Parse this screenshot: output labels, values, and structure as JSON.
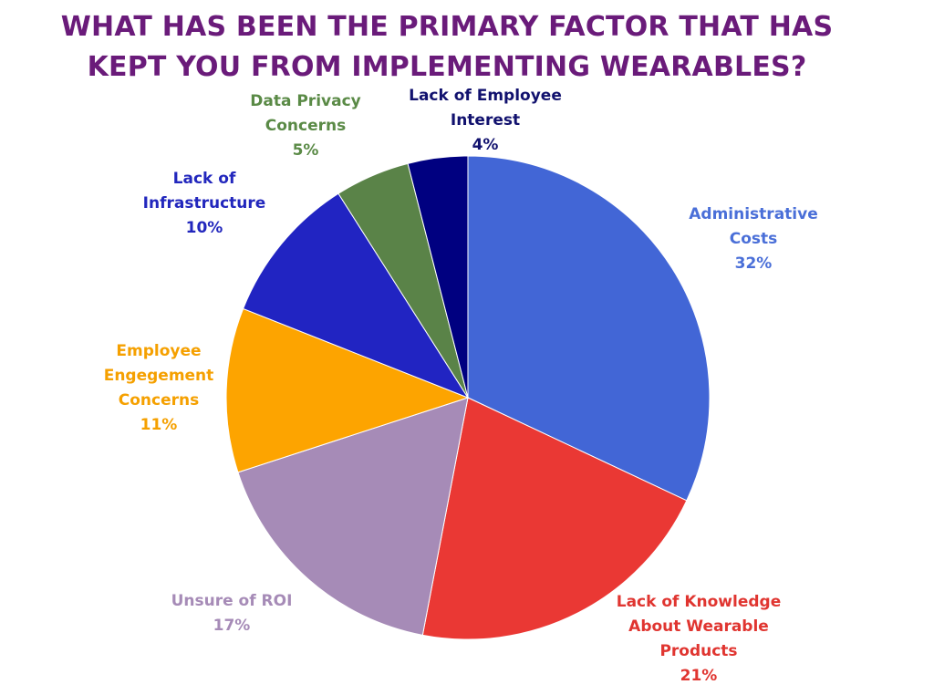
{
  "title": {
    "line1": "WHAT HAS BEEN THE PRIMARY FACTOR THAT HAS",
    "line2": "KEPT YOU FROM IMPLEMENTING WEARABLES?"
  },
  "chart_data": {
    "type": "pie",
    "title": "WHAT HAS BEEN THE PRIMARY FACTOR THAT HAS KEPT YOU FROM IMPLEMENTING WEARABLES?",
    "slices": [
      {
        "label": "Administrative Costs",
        "label_lines": [
          "Administrative",
          "Costs"
        ],
        "value": 32,
        "value_label": "32%",
        "color": "#4266d6",
        "label_color": "#4a6fd8"
      },
      {
        "label": "Lack of Knowledge About Wearable Products",
        "label_lines": [
          "Lack of Knowledge",
          "About Wearable",
          "Products"
        ],
        "value": 21,
        "value_label": "21%",
        "color": "#ea3834",
        "label_color": "#e03530"
      },
      {
        "label": "Unsure of ROI",
        "label_lines": [
          "Unsure of ROI"
        ],
        "value": 17,
        "value_label": "17%",
        "color": "#a68bb7",
        "label_color": "#a68bb7"
      },
      {
        "label": "Employee Engegement Concerns",
        "label_lines": [
          "Employee",
          "Engegement",
          "Concerns"
        ],
        "value": 11,
        "value_label": "11%",
        "color": "#fda400",
        "label_color": "#f5a000"
      },
      {
        "label": "Lack of Infrastructure",
        "label_lines": [
          "Lack of",
          "Infrastructure"
        ],
        "value": 10,
        "value_label": "10%",
        "color": "#2124c2",
        "label_color": "#2227bd"
      },
      {
        "label": "Data Privacy Concerns",
        "label_lines": [
          "Data Privacy",
          "Concerns"
        ],
        "value": 5,
        "value_label": "5%",
        "color": "#5a8348",
        "label_color": "#5a8a46"
      },
      {
        "label": "Lack of Employee Interest",
        "label_lines": [
          "Lack of Employee",
          "Interest"
        ],
        "value": 4,
        "value_label": "4%",
        "color": "#000080",
        "label_color": "#11116e"
      }
    ]
  }
}
